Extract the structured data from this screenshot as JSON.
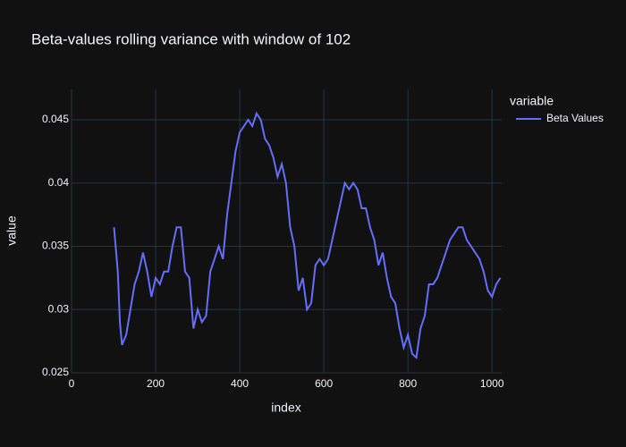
{
  "chart_data": {
    "type": "line",
    "title": "Beta-values rolling variance with window of 102",
    "x_label": "index",
    "y_label": "value",
    "legend_title": "variable",
    "x": [
      101,
      110,
      115,
      120,
      130,
      140,
      150,
      160,
      170,
      180,
      190,
      200,
      210,
      220,
      230,
      240,
      250,
      260,
      270,
      280,
      290,
      300,
      310,
      320,
      330,
      340,
      350,
      360,
      370,
      380,
      390,
      400,
      410,
      420,
      430,
      440,
      450,
      460,
      470,
      480,
      490,
      500,
      510,
      520,
      530,
      540,
      550,
      560,
      570,
      580,
      590,
      600,
      610,
      620,
      630,
      640,
      650,
      660,
      670,
      680,
      690,
      700,
      710,
      720,
      730,
      740,
      750,
      760,
      770,
      780,
      790,
      800,
      810,
      820,
      830,
      840,
      850,
      860,
      870,
      880,
      890,
      900,
      910,
      920,
      930,
      940,
      950,
      960,
      970,
      980,
      990,
      1000,
      1010,
      1020
    ],
    "series": [
      {
        "name": "Beta Values",
        "color": "#636efa",
        "values": [
          0.0365,
          0.033,
          0.029,
          0.0272,
          0.028,
          0.03,
          0.032,
          0.033,
          0.0345,
          0.033,
          0.031,
          0.0325,
          0.032,
          0.033,
          0.033,
          0.035,
          0.0365,
          0.0365,
          0.033,
          0.0325,
          0.0285,
          0.03,
          0.029,
          0.0295,
          0.033,
          0.034,
          0.035,
          0.034,
          0.0375,
          0.04,
          0.0425,
          0.044,
          0.0445,
          0.045,
          0.0445,
          0.0455,
          0.045,
          0.0435,
          0.043,
          0.042,
          0.0405,
          0.0415,
          0.04,
          0.0365,
          0.035,
          0.0315,
          0.0325,
          0.03,
          0.0305,
          0.0335,
          0.034,
          0.0335,
          0.034,
          0.0355,
          0.037,
          0.0385,
          0.04,
          0.0395,
          0.04,
          0.0395,
          0.038,
          0.038,
          0.0365,
          0.0355,
          0.0335,
          0.0345,
          0.0325,
          0.031,
          0.0305,
          0.0285,
          0.027,
          0.028,
          0.0265,
          0.0262,
          0.0285,
          0.0295,
          0.032,
          0.032,
          0.0325,
          0.0335,
          0.0345,
          0.0355,
          0.036,
          0.0365,
          0.0365,
          0.0355,
          0.035,
          0.0345,
          0.034,
          0.033,
          0.0315,
          0.031,
          0.032,
          0.0325
        ]
      }
    ],
    "xlim": [
      0,
      1023
    ],
    "xticks": [
      0,
      200,
      400,
      600,
      800,
      1000
    ],
    "ylim": [
      0.025,
      0.0474
    ],
    "yticks": [
      0.025,
      0.03,
      0.035,
      0.04,
      0.045
    ],
    "grid": true,
    "legend_position": "right"
  }
}
